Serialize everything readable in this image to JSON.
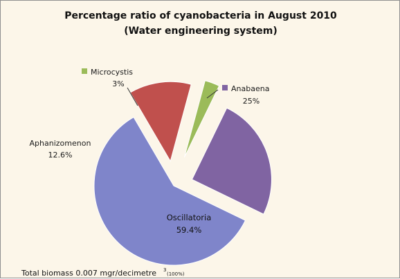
{
  "chart_data": {
    "type": "pie",
    "title_line1": "Percentage ratio of cyanobacteria in August 2010",
    "title_line2": "(Water engineering system)",
    "slices": [
      {
        "name": "Anabaena",
        "value": 25,
        "label": "25%",
        "color": "#8064a2"
      },
      {
        "name": "Oscillatoria",
        "value": 59.4,
        "label": "59.4%",
        "color": "#7f85ca"
      },
      {
        "name": "Aphanizomenon",
        "value": 12.6,
        "label": "12.6%",
        "color": "#c0504d"
      },
      {
        "name": "Microcystis",
        "value": 3,
        "label": "3%",
        "color": "#9bbb59"
      }
    ],
    "legend": "none",
    "footnote_main": "Total biomass 0.007 mgr/decimetre",
    "footnote_sup": "3",
    "footnote_tail": "(100%)"
  }
}
